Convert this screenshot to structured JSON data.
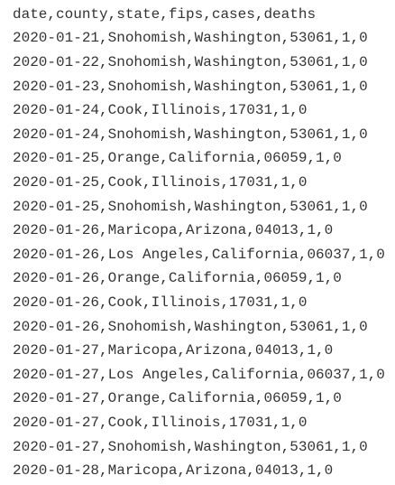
{
  "lines": [
    "date,county,state,fips,cases,deaths",
    "2020-01-21,Snohomish,Washington,53061,1,0",
    "2020-01-22,Snohomish,Washington,53061,1,0",
    "2020-01-23,Snohomish,Washington,53061,1,0",
    "2020-01-24,Cook,Illinois,17031,1,0",
    "2020-01-24,Snohomish,Washington,53061,1,0",
    "2020-01-25,Orange,California,06059,1,0",
    "2020-01-25,Cook,Illinois,17031,1,0",
    "2020-01-25,Snohomish,Washington,53061,1,0",
    "2020-01-26,Maricopa,Arizona,04013,1,0",
    "2020-01-26,Los Angeles,California,06037,1,0",
    "2020-01-26,Orange,California,06059,1,0",
    "2020-01-26,Cook,Illinois,17031,1,0",
    "2020-01-26,Snohomish,Washington,53061,1,0",
    "2020-01-27,Maricopa,Arizona,04013,1,0",
    "2020-01-27,Los Angeles,California,06037,1,0",
    "2020-01-27,Orange,California,06059,1,0",
    "2020-01-27,Cook,Illinois,17031,1,0",
    "2020-01-27,Snohomish,Washington,53061,1,0",
    "2020-01-28,Maricopa,Arizona,04013,1,0"
  ]
}
